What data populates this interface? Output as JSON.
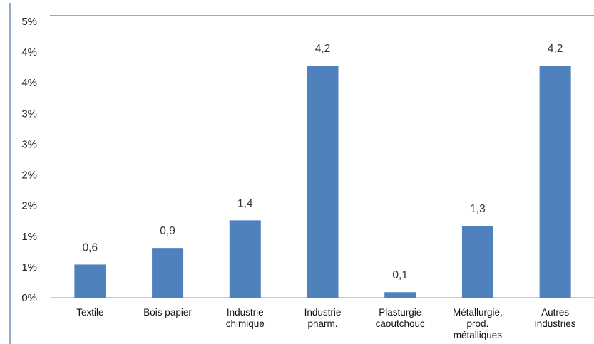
{
  "chart_data": {
    "type": "bar",
    "categories": [
      [
        "Textile"
      ],
      [
        "Bois papier"
      ],
      [
        "Industrie",
        "chimique"
      ],
      [
        "Industrie",
        "pharm."
      ],
      [
        "Plasturgie",
        "caoutchouc"
      ],
      [
        "Métallurgie,",
        "prod.",
        "métalliques"
      ],
      [
        "Autres",
        "industries"
      ]
    ],
    "values": [
      0.6,
      0.9,
      1.4,
      4.2,
      0.1,
      1.3,
      4.2
    ],
    "bar_heights_pct": [
      0.6,
      0.9,
      1.4,
      4.2,
      0.1,
      1.3,
      4.2
    ],
    "data_labels": [
      "0,6",
      "0,9",
      "1,4",
      "4,2",
      "0,1",
      "1,3",
      "4,2"
    ],
    "y_tick_labels": [
      "0%",
      "1%",
      "1%",
      "2%",
      "2%",
      "3%",
      "3%",
      "4%",
      "4%",
      "5%"
    ],
    "ylim": [
      0,
      5
    ],
    "title": "",
    "xlabel": "",
    "ylabel": "",
    "grid": false,
    "legend": "none",
    "colors": {
      "bar": "#4F81BD",
      "axis": "#a9a9a9",
      "frame": "#6f8fb8"
    }
  }
}
